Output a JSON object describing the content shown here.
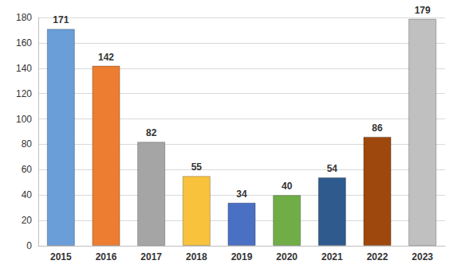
{
  "chart_data": {
    "type": "bar",
    "categories": [
      "2015",
      "2016",
      "2017",
      "2018",
      "2019",
      "2020",
      "2021",
      "2022",
      "2023"
    ],
    "values": [
      171,
      142,
      82,
      55,
      34,
      40,
      54,
      86,
      179
    ],
    "colors": [
      "#6a9ed8",
      "#ed7d31",
      "#a5a5a5",
      "#f8c23c",
      "#4a70c4",
      "#70ad47",
      "#2e5a8e",
      "#9e480e",
      "#c0c0c0"
    ],
    "ylim": [
      0,
      180
    ],
    "yticks": [
      0,
      20,
      40,
      60,
      80,
      100,
      120,
      140,
      160,
      180
    ],
    "grid": true,
    "data_labels": true
  }
}
